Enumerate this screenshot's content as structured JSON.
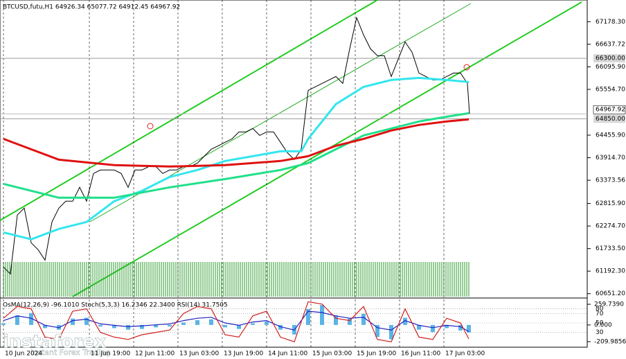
{
  "chart_data": [
    {
      "type": "line",
      "title": "BTCUSD,futu,H1  64926.34 65077.72 64912.45 64967.92",
      "xlim": [
        0,
        210
      ],
      "xticks": [
        {
          "value": 0,
          "label": "10 Jun 2024"
        },
        {
          "value": 31,
          "label": "11 Jun 19:00"
        },
        {
          "value": 47,
          "label": "12 Jun 11:00"
        },
        {
          "value": 63,
          "label": "13 Jun 03:00"
        },
        {
          "value": 79,
          "label": "13 Jun 19:00"
        },
        {
          "value": 95,
          "label": "14 Jun 11:00"
        },
        {
          "value": 111,
          "label": "15 Jun 03:00"
        },
        {
          "value": 127,
          "label": "15 Jun 19:00"
        },
        {
          "value": 143,
          "label": "16 Jun 11:00"
        },
        {
          "value": 159,
          "label": "17 Jun 03:00"
        }
      ],
      "ylim": [
        60580,
        67700
      ],
      "yticks": [
        {
          "value": 67178.3,
          "label": "67178.30"
        },
        {
          "value": 66637.72,
          "label": "66637.72"
        },
        {
          "value": 66095.9,
          "label": "66095.90"
        },
        {
          "value": 65554.7,
          "label": "65554.70"
        },
        {
          "value": 64455.9,
          "label": "64455.90"
        },
        {
          "value": 63914.7,
          "label": "63914.70"
        },
        63373.56,
        {
          "value": 62815.9,
          "label": "62815.90"
        },
        {
          "value": 62274.7,
          "label": "62274.70"
        },
        {
          "value": 61733.5,
          "label": "61733.50"
        },
        {
          "value": 61192.3,
          "label": "61192.30"
        },
        {
          "value": 60651.2,
          "label": "60651.20"
        }
      ],
      "levels": [
        {
          "value": 66300,
          "label": "66300.00"
        },
        {
          "value": 64850,
          "label": "64850.00"
        }
      ],
      "last_price": 64967.92,
      "series": [
        {
          "color": "#000000",
          "width": 1,
          "x": [
            0,
            2.5,
            5,
            7.5,
            10,
            12.5,
            15,
            17.5,
            20,
            22.5,
            25,
            27.5,
            30,
            32.5,
            35,
            37.5,
            40,
            42.5,
            45,
            47.5,
            50,
            52.5,
            55,
            57.5,
            60,
            62.5,
            65,
            67.5,
            70,
            72.5,
            75,
            77.5,
            80,
            82.5,
            85,
            87.5,
            90,
            92.5,
            95,
            97.5,
            100,
            102.5,
            105,
            107.5,
            110,
            112.5,
            115,
            117.5,
            120,
            122.5,
            125,
            127.5,
            130,
            132.5,
            135,
            137.5,
            140,
            142.5,
            145,
            147.5,
            150,
            152.5,
            155,
            157.5,
            160,
            162.5,
            165,
            167.5,
            168.25
          ],
          "values": [
            61290,
            61124,
            62538,
            62704,
            61873,
            61706,
            61457,
            62371,
            62704,
            62870,
            62870,
            63203,
            62870,
            63536,
            63619,
            63619,
            63619,
            63536,
            63203,
            63619,
            63619,
            63702,
            63702,
            63536,
            63619,
            63619,
            63702,
            63702,
            63785,
            63951,
            64117,
            64200,
            64284,
            64367,
            64533,
            64533,
            64616,
            64450,
            64533,
            64533,
            64284,
            64034,
            63868,
            64117,
            65531,
            65614,
            65697,
            65781,
            65864,
            65697,
            66529,
            67277,
            66862,
            66529,
            66363,
            66363,
            65864,
            66280,
            66695,
            66446,
            65947,
            65864,
            65781,
            65781,
            65864,
            65947,
            65947,
            65697,
            64967.92
          ]
        },
        {
          "color": "#33e6ee",
          "width": 3,
          "x": [
            0,
            10,
            20,
            30,
            40,
            50,
            60,
            70,
            80,
            90,
            100,
            107.5,
            110,
            120,
            130,
            140,
            150,
            160,
            168
          ],
          "values": [
            62122,
            61956,
            62205,
            62371,
            62870,
            63120,
            63452,
            63619,
            63835,
            63951,
            64068,
            64068,
            64367,
            65199,
            65614,
            65781,
            65830,
            65781,
            65731
          ]
        },
        {
          "color": "#1fe08a",
          "width": 3,
          "x": [
            0,
            20,
            40,
            60,
            80,
            100,
            110,
            120,
            130,
            140,
            150,
            160,
            168
          ],
          "values": [
            63286,
            62954,
            62954,
            63203,
            63402,
            63619,
            63785,
            64117,
            64450,
            64616,
            64783,
            64899,
            64982
          ]
        },
        {
          "color": "#e01010",
          "width": 3,
          "x": [
            0,
            20,
            40,
            60,
            80,
            100,
            110,
            120,
            130,
            140,
            150,
            160,
            168
          ],
          "values": [
            64367,
            63868,
            63735,
            63702,
            63735,
            63835,
            63951,
            64200,
            64367,
            64567,
            64700,
            64783,
            64833
          ]
        }
      ]
    },
    {
      "type": "bar",
      "title": "OsMA(12,26,9) -96.1010  Stoch(5,3,3) 16.2346 22.3400  RSI(14) 31.7505",
      "color": "#5ab4e6",
      "x": [
        0,
        5,
        10,
        15,
        20,
        25,
        30,
        35,
        40,
        45,
        50,
        55,
        60,
        65,
        70,
        75,
        80,
        85,
        90,
        95,
        100,
        105,
        110,
        115,
        120,
        125,
        130,
        135,
        140,
        145,
        150,
        155,
        160,
        165,
        168
      ],
      "values": [
        20,
        120,
        150,
        -40,
        -60,
        80,
        90,
        -20,
        -40,
        -60,
        -50,
        -30,
        -20,
        30,
        60,
        70,
        -30,
        -50,
        20,
        40,
        -60,
        -120,
        200,
        250,
        120,
        80,
        140,
        -150,
        -180,
        90,
        -60,
        -90,
        -40,
        -70,
        -96.101
      ],
      "ylim": [
        -271,
        321
      ],
      "yticks": [
        {
          "value": 259.739,
          "label": "259.7390"
        },
        {
          "value": 0,
          "label": "0.000"
        },
        {
          "value": -209.9856,
          "label": "-209.9856"
        }
      ],
      "y2lim": [
        0,
        100
      ],
      "y2ticks": [
        80,
        70,
        50,
        30
      ],
      "series": [
        {
          "color": "#2020c0",
          "axis": "y2",
          "values": [
            55,
            65,
            60,
            45,
            40,
            55,
            58,
            48,
            45,
            42,
            44,
            46,
            48,
            55,
            60,
            62,
            50,
            45,
            52,
            55,
            42,
            35,
            75,
            72,
            65,
            60,
            62,
            40,
            35,
            55,
            45,
            40,
            45,
            42,
            31.7505
          ]
        },
        {
          "color": "#d02020",
          "axis": "y2",
          "values": [
            60,
            85,
            80,
            20,
            15,
            75,
            80,
            30,
            20,
            15,
            25,
            30,
            35,
            70,
            85,
            80,
            25,
            20,
            65,
            75,
            20,
            10,
            95,
            90,
            60,
            55,
            85,
            15,
            10,
            80,
            20,
            15,
            60,
            50,
            16.2346
          ]
        }
      ]
    }
  ],
  "logo": {
    "name": "instaforex",
    "tagline": "Instant Forex Trading"
  }
}
